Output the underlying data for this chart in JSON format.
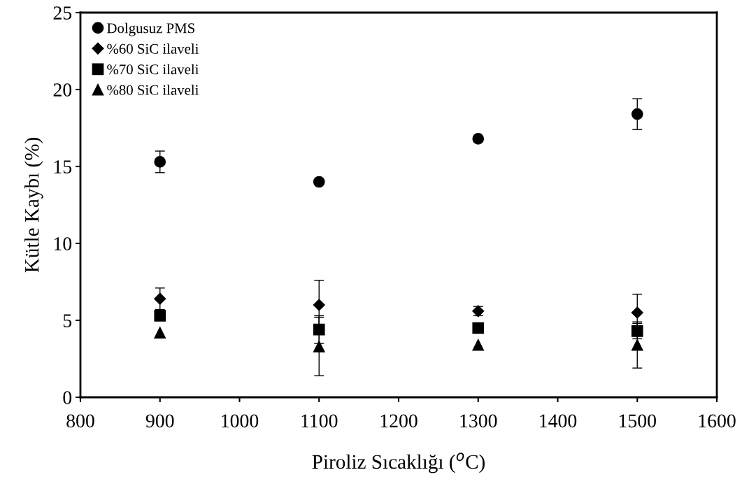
{
  "chart_data": {
    "type": "scatter",
    "xlabel": "Piroliz Sıcaklığı ($^{o}$C)",
    "ylabel": "Kütle Kaybı (%)",
    "x": [
      900,
      1100,
      1300,
      1500
    ],
    "series": [
      {
        "name": "Dolgusuz PMS",
        "color": "#000000",
        "marker": "circle",
        "values": [
          15.3,
          14.0,
          16.8,
          18.4
        ],
        "errors": [
          0.7,
          null,
          null,
          1.0
        ]
      },
      {
        "name": "%60 SiC ilaveli",
        "color": "#000000",
        "marker": "diamond",
        "values": [
          6.4,
          6.0,
          5.6,
          5.5
        ],
        "errors": [
          0.7,
          1.6,
          0.3,
          1.2
        ]
      },
      {
        "name": "%70 SiC ilaveli",
        "color": "#000000",
        "marker": "square",
        "values": [
          5.3,
          4.4,
          4.5,
          4.3
        ],
        "errors": [
          null,
          0.9,
          null,
          0.5
        ]
      },
      {
        "name": "%80 SiC ilaveli",
        "color": "#000000",
        "marker": "triangle",
        "values": [
          4.2,
          3.3,
          3.4,
          3.4
        ],
        "errors": [
          null,
          1.9,
          null,
          1.5
        ]
      }
    ],
    "xlim": [
      800,
      1600
    ],
    "xticks": [
      800,
      900,
      1000,
      1100,
      1200,
      1300,
      1400,
      1500,
      1600
    ],
    "ylim": [
      0,
      25
    ],
    "yticks": [
      0,
      5,
      10,
      15,
      20,
      25
    ],
    "grid": false,
    "legend": "top left"
  }
}
